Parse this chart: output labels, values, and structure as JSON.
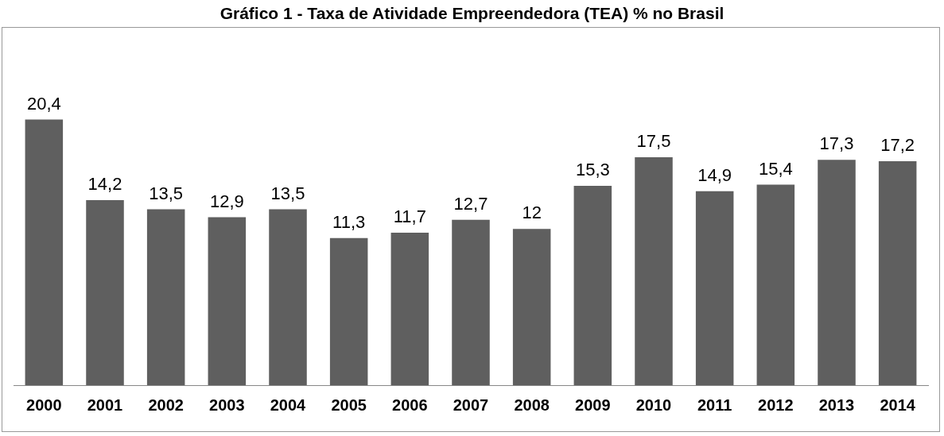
{
  "chart_data": {
    "type": "bar",
    "title": "Gráfico 1 - Taxa de Atividade Empreendedora (TEA) % no Brasil",
    "categories": [
      "2000",
      "2001",
      "2002",
      "2003",
      "2004",
      "2005",
      "2006",
      "2007",
      "2008",
      "2009",
      "2010",
      "2011",
      "2012",
      "2013",
      "2014"
    ],
    "values": [
      20.4,
      14.2,
      13.5,
      12.9,
      13.5,
      11.3,
      11.7,
      12.7,
      12,
      15.3,
      17.5,
      14.9,
      15.4,
      17.3,
      17.2
    ],
    "color": "#5f5f5f",
    "data_labels": true,
    "value_labels": [
      "20,4",
      "14,2",
      "13,5",
      "12,9",
      "13,5",
      "11,3",
      "11,7",
      "12,7",
      "12",
      "15,3",
      "17,5",
      "14,9",
      "15,4",
      "17,3",
      "17,2"
    ],
    "tick_labels": "x",
    "grid": false,
    "legend": false
  }
}
